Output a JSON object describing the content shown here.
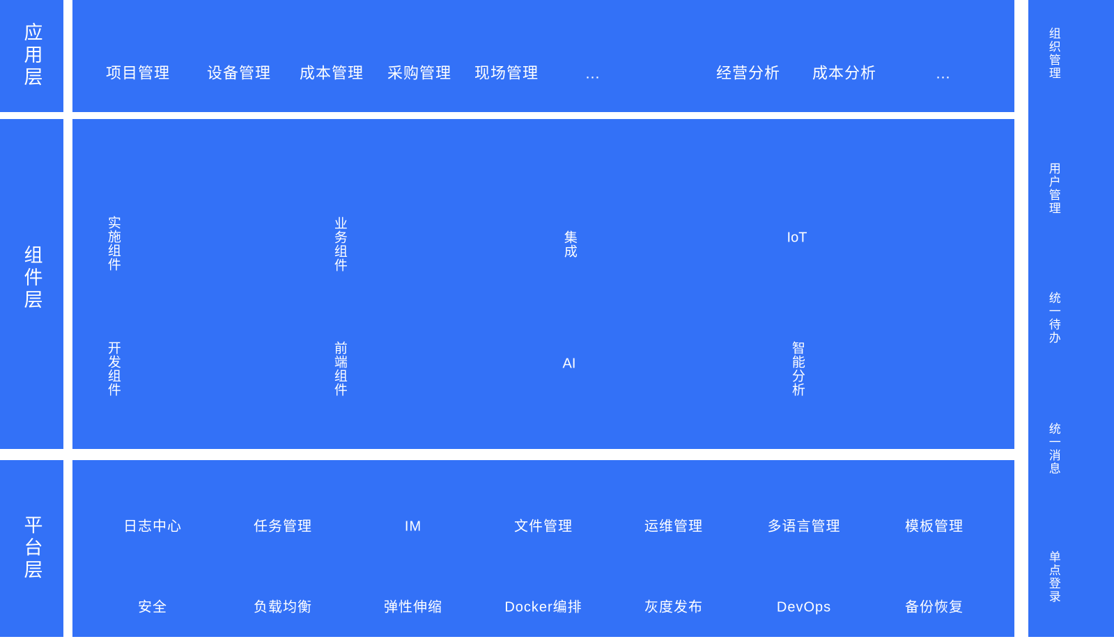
{
  "diagram": {
    "colors": {
      "panel_blue": "#3371f7",
      "text": "#ffffff",
      "gap": "#ffffff"
    },
    "left_rail": {
      "app_layer": "应用层",
      "component_layer": "组件层",
      "platform_layer": "平台层"
    },
    "app_layer_items": [
      "项目管理",
      "设备管理",
      "成本管理",
      "采购管理",
      "现场管理",
      "…",
      "经营分析",
      "成本分析",
      "…"
    ],
    "component_layer_items": [
      "实施组件",
      "业务组件",
      "集成",
      "IoT",
      "开发组件",
      "前端组件",
      "AI",
      "智能分析"
    ],
    "platform_layer_rows": [
      [
        "日志中心",
        "任务管理",
        "IM",
        "文件管理",
        "运维管理",
        "多语言管理",
        "模板管理"
      ],
      [
        "安全",
        "负载均衡",
        "弹性伸缩",
        "Docker编排",
        "灰度发布",
        "DevOps",
        "备份恢复"
      ]
    ],
    "right_rail": [
      "组织管理",
      "用户管理",
      "统一待办",
      "统一消息",
      "单点登录"
    ]
  }
}
